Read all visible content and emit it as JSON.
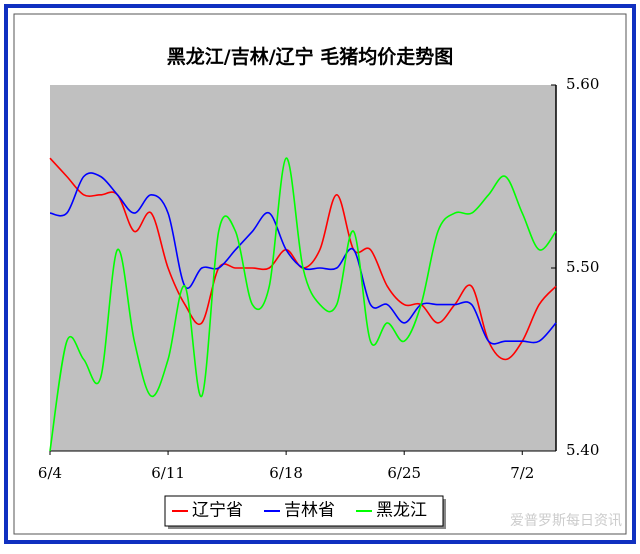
{
  "chart_data": {
    "type": "line",
    "title": "黑龙江/吉林/辽宁 毛猪均价走势图",
    "watermark": "爱普罗斯每日资讯",
    "categories": [
      "6/4",
      null,
      null,
      null,
      null,
      null,
      null,
      "6/11",
      null,
      null,
      null,
      null,
      null,
      null,
      "6/18",
      null,
      null,
      null,
      null,
      null,
      null,
      "6/25",
      null,
      null,
      null,
      null,
      null,
      null,
      "7/2",
      null,
      null
    ],
    "series": [
      {
        "name": "辽宁省",
        "color": "#ff0000",
        "values": [
          5.56,
          5.55,
          5.54,
          5.54,
          5.54,
          5.52,
          5.53,
          5.5,
          5.48,
          5.47,
          5.5,
          5.5,
          5.5,
          5.5,
          5.51,
          5.5,
          5.51,
          5.54,
          5.51,
          5.51,
          5.49,
          5.48,
          5.48,
          5.47,
          5.48,
          5.49,
          5.46,
          5.45,
          5.46,
          5.48,
          5.49
        ]
      },
      {
        "name": "吉林省",
        "color": "#0000ff",
        "values": [
          5.53,
          5.53,
          5.55,
          5.55,
          5.54,
          5.53,
          5.54,
          5.53,
          5.49,
          5.5,
          5.5,
          5.51,
          5.52,
          5.53,
          5.51,
          5.5,
          5.5,
          5.5,
          5.51,
          5.48,
          5.48,
          5.47,
          5.48,
          5.48,
          5.48,
          5.48,
          5.46,
          5.46,
          5.46,
          5.46,
          5.47
        ]
      },
      {
        "name": "黑龙江",
        "color": "#00ff00",
        "values": [
          5.4,
          5.46,
          5.45,
          5.44,
          5.51,
          5.46,
          5.43,
          5.45,
          5.49,
          5.43,
          5.52,
          5.52,
          5.48,
          5.49,
          5.56,
          5.5,
          5.48,
          5.48,
          5.52,
          5.46,
          5.47,
          5.46,
          5.48,
          5.52,
          5.53,
          5.53,
          5.54,
          5.55,
          5.53,
          5.51,
          5.52
        ]
      }
    ],
    "ylim": [
      5.4,
      5.6
    ],
    "yticks": [
      {
        "value": 5.4,
        "label": "5.40"
      },
      {
        "value": 5.5,
        "label": "5.50"
      },
      {
        "value": 5.6,
        "label": "5.60"
      }
    ],
    "y_axis_side": "right",
    "grid": false,
    "legend": "bottom"
  }
}
